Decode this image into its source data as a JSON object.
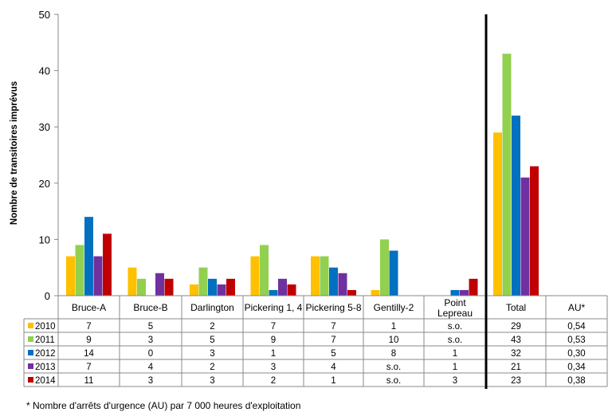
{
  "chart_data": {
    "type": "bar",
    "ylabel": "Nombre de transitoires imprévus",
    "ylim": [
      0,
      50
    ],
    "yticks": [
      "0",
      "10",
      "20",
      "30",
      "40",
      "50"
    ],
    "categories": [
      "Bruce-A",
      "Bruce-B",
      "Darlington",
      "Pickering 1, 4",
      "Pickering 5-8",
      "Gentilly-2",
      "Point Lepreau",
      "Total",
      "AU*"
    ],
    "series": [
      {
        "name": "2010",
        "color": "#FFC000",
        "values": [
          7,
          5,
          2,
          7,
          7,
          1,
          null,
          29,
          0.54
        ],
        "labels": [
          "7",
          "5",
          "2",
          "7",
          "7",
          "1",
          "s.o.",
          "29",
          "0,54"
        ]
      },
      {
        "name": "2011",
        "color": "#92D050",
        "values": [
          9,
          3,
          5,
          9,
          7,
          10,
          null,
          43,
          0.53
        ],
        "labels": [
          "9",
          "3",
          "5",
          "9",
          "7",
          "10",
          "s.o.",
          "43",
          "0,53"
        ]
      },
      {
        "name": "2012",
        "color": "#0070C0",
        "values": [
          14,
          0,
          3,
          1,
          5,
          8,
          1,
          32,
          0.3
        ],
        "labels": [
          "14",
          "0",
          "3",
          "1",
          "5",
          "8",
          "1",
          "32",
          "0,30"
        ]
      },
      {
        "name": "2013",
        "color": "#7030A0",
        "values": [
          7,
          4,
          2,
          3,
          4,
          null,
          1,
          21,
          0.34
        ],
        "labels": [
          "7",
          "4",
          "2",
          "3",
          "4",
          "s.o.",
          "1",
          "21",
          "0,34"
        ]
      },
      {
        "name": "2014",
        "color": "#C00000",
        "values": [
          11,
          3,
          3,
          2,
          1,
          null,
          3,
          23,
          0.38
        ],
        "labels": [
          "11",
          "3",
          "3",
          "2",
          "1",
          "s.o.",
          "3",
          "23",
          "0,38"
        ]
      }
    ],
    "footnote": "* Nombre d'arrêts d'urgence (AU) par 7 000 heures d'exploitation",
    "grid": false,
    "legend": "table-left"
  }
}
